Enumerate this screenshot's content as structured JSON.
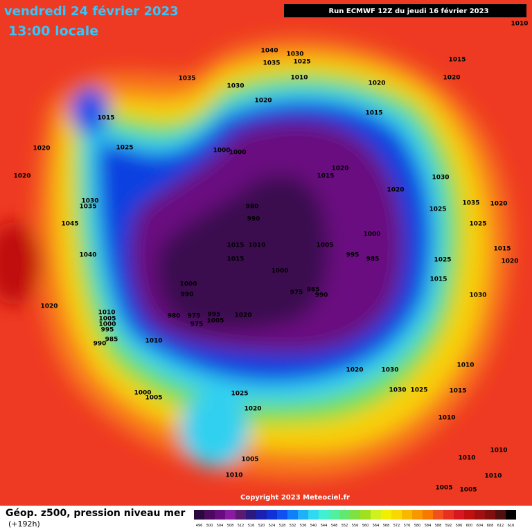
{
  "header": {
    "title": "vendredi 24 février 2023",
    "subtitle": "13:00 locale",
    "run": "Run ECMWF 12Z du jeudi 16 février 2023"
  },
  "footer": {
    "title": "Géop. z500, pression niveau mer",
    "lead": "(+192h)",
    "copyright": "Copyright 2023 Meteociel.fr"
  },
  "isobar_labels": [
    1010,
    1040,
    1030,
    1035,
    1025,
    1035,
    1010,
    1030,
    1020,
    1015,
    1020,
    1020,
    1015,
    1015,
    1025,
    1020,
    1000,
    1000,
    1020,
    1015,
    1020,
    1030,
    1020,
    1030,
    1035,
    1025,
    1035,
    1020,
    1025,
    980,
    990,
    1045,
    1000,
    1015,
    1010,
    1005,
    1015,
    995,
    985,
    1040,
    1015,
    1025,
    1020,
    1000,
    1015,
    1000,
    990,
    975,
    985,
    990,
    1030,
    1020,
    980,
    975,
    995,
    1020,
    975,
    1005,
    1010,
    1005,
    1000,
    995,
    985,
    990,
    1010,
    1010,
    1020,
    1030,
    1030,
    1025,
    1015,
    1000,
    1005,
    1025,
    1020,
    1010,
    1005,
    1010,
    1010,
    1010,
    1010,
    1005,
    1005
  ],
  "legend": {
    "values": [
      496,
      500,
      504,
      508,
      512,
      516,
      520,
      524,
      528,
      532,
      536,
      540,
      544,
      548,
      552,
      556,
      560,
      564,
      568,
      572,
      576,
      580,
      584,
      588,
      592,
      596,
      600,
      604,
      608,
      612,
      616
    ],
    "colors": [
      "#2a0a3e",
      "#4b0a5e",
      "#6a0a80",
      "#8a1aa0",
      "#5a1a70",
      "#2a1a80",
      "#1a20b0",
      "#1030d8",
      "#1050f0",
      "#1080f8",
      "#20b0f8",
      "#30d8f0",
      "#40f0d0",
      "#50f0a0",
      "#60e870",
      "#80e040",
      "#a0e020",
      "#d0f020",
      "#f0f000",
      "#f8d800",
      "#f8b800",
      "#f89800",
      "#f87800",
      "#f05020",
      "#e83020",
      "#d81820",
      "#c01010",
      "#a01010",
      "#801010",
      "#501010",
      "#000000"
    ]
  }
}
